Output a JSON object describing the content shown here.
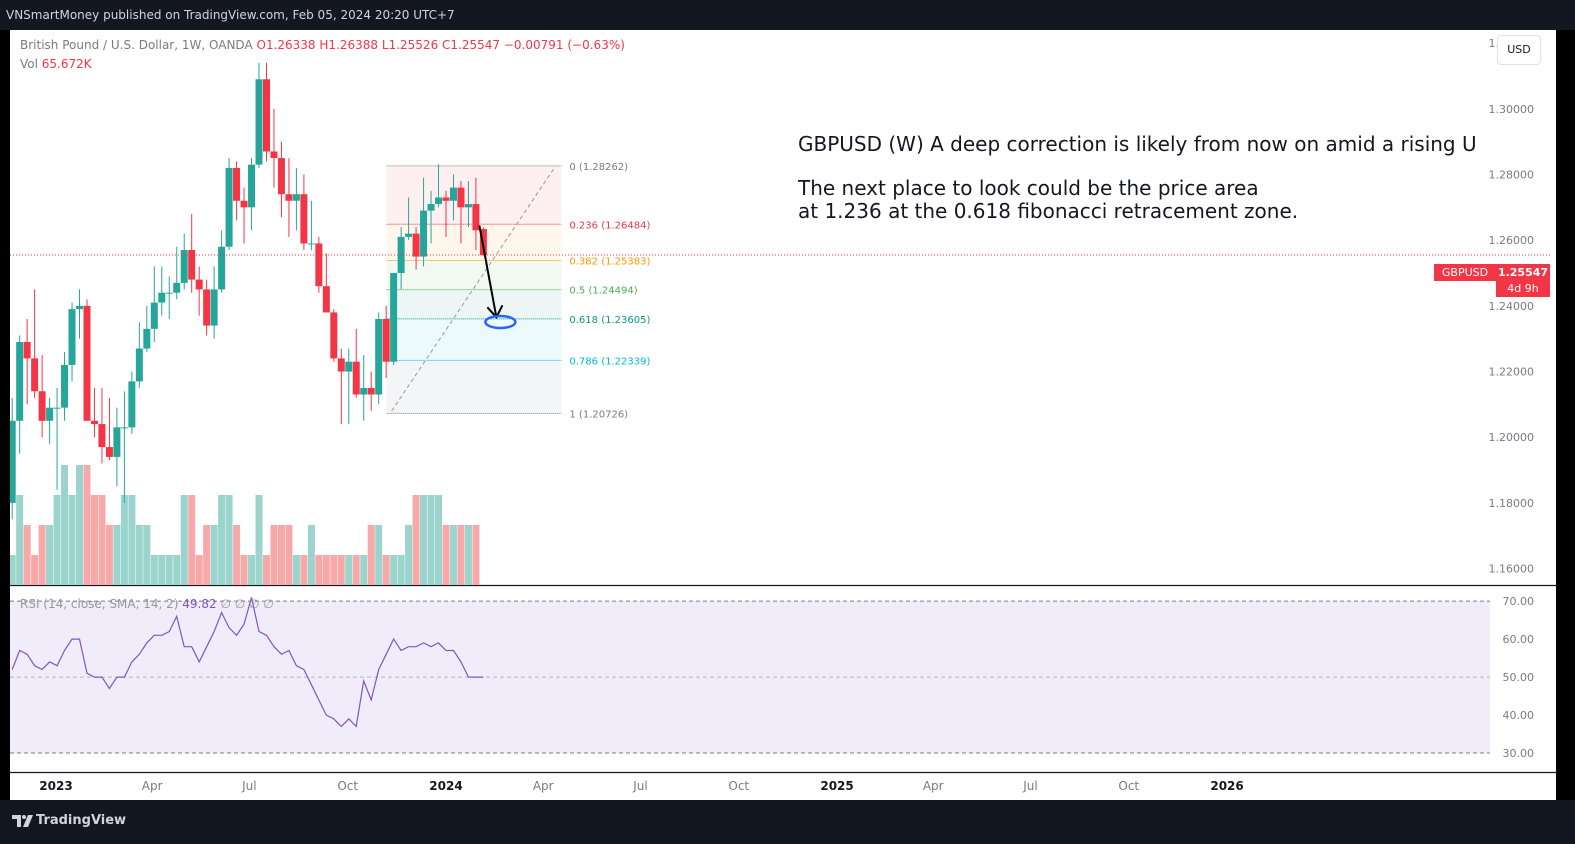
{
  "publisher": "VNSmartMoney published on TradingView.com, Feb 05, 2024 20:20 UTC+7",
  "legend": {
    "symbol": "British Pound / U.S. Dollar, 1W, OANDA",
    "open": "O1.26338",
    "high": "H1.26388",
    "low": "L1.25526",
    "close": "C1.25547",
    "change": "−0.00791 (−0.63%)",
    "vol_label": "Vol",
    "vol_value": "65.672K"
  },
  "currency_button": "USD",
  "price_tag": {
    "symbol": "GBPUSD",
    "price": "1.25547",
    "countdown": "4d 9h"
  },
  "annotation": {
    "headline": "GBPUSD (W) A deep correction is likely from now on amid a rising U",
    "line1": "The next place to look could be the price area",
    "line2": "at 1.236 at the 0.618 fibonacci retracement zone."
  },
  "rsi_legend": {
    "label": "RSI (14, close, SMA, 14, 2)",
    "value": "49.82",
    "extras": "∅ ∅ ∅ ∅"
  },
  "footer": {
    "brand": "TradingView"
  },
  "colors": {
    "up": "#26a69a",
    "down": "#f23645",
    "vol_up": "#9bd3cd",
    "vol_down": "#f7a9a9",
    "rsi_line": "#7e57c2",
    "rsi_band": "#f1ecf9",
    "fib_0": "#787b86",
    "fib_236": "#f23645",
    "fib_382": "#ff9800",
    "fib_5": "#4caf50",
    "fib_618": "#089981",
    "fib_786": "#00bcd4",
    "fib_1": "#787b86"
  },
  "chart_data": {
    "type": "candlestick",
    "symbol": "GBPUSD",
    "timeframe": "1W",
    "price_axis": {
      "ylim": [
        1.155,
        1.324
      ],
      "ticks": [
        "1.16000",
        "1.18000",
        "1.20000",
        "1.22000",
        "1.24000",
        "1.26000",
        "1.28000",
        "1.30000",
        "1.32000"
      ]
    },
    "time_axis": {
      "labels": [
        {
          "text": "2023",
          "date": "2023-01-01",
          "bold": true
        },
        {
          "text": "Apr",
          "date": "2023-04-01",
          "bold": false
        },
        {
          "text": "Jul",
          "date": "2023-07-01",
          "bold": false
        },
        {
          "text": "Oct",
          "date": "2023-10-01",
          "bold": false
        },
        {
          "text": "2024",
          "date": "2024-01-01",
          "bold": true
        },
        {
          "text": "Apr",
          "date": "2024-04-01",
          "bold": false
        },
        {
          "text": "Jul",
          "date": "2024-07-01",
          "bold": false
        },
        {
          "text": "Oct",
          "date": "2024-10-01",
          "bold": false
        },
        {
          "text": "2025",
          "date": "2025-01-01",
          "bold": true
        },
        {
          "text": "Apr",
          "date": "2025-04-01",
          "bold": false
        },
        {
          "text": "Jul",
          "date": "2025-07-01",
          "bold": false
        },
        {
          "text": "Oct",
          "date": "2025-10-01",
          "bold": false
        },
        {
          "text": "2026",
          "date": "2026-01-01",
          "bold": true
        }
      ]
    },
    "candles": [
      {
        "date": "2022-11-21",
        "o": 1.18,
        "h": 1.212,
        "l": 1.175,
        "c": 1.205
      },
      {
        "date": "2022-11-28",
        "o": 1.205,
        "h": 1.231,
        "l": 1.195,
        "c": 1.229
      },
      {
        "date": "2022-12-05",
        "o": 1.229,
        "h": 1.236,
        "l": 1.21,
        "c": 1.224
      },
      {
        "date": "2022-12-12",
        "o": 1.224,
        "h": 1.245,
        "l": 1.212,
        "c": 1.214
      },
      {
        "date": "2022-12-19",
        "o": 1.214,
        "h": 1.225,
        "l": 1.2,
        "c": 1.205
      },
      {
        "date": "2022-12-26",
        "o": 1.205,
        "h": 1.212,
        "l": 1.198,
        "c": 1.209
      },
      {
        "date": "2023-01-02",
        "o": 1.209,
        "h": 1.215,
        "l": 1.184,
        "c": 1.209
      },
      {
        "date": "2023-01-09",
        "o": 1.209,
        "h": 1.226,
        "l": 1.205,
        "c": 1.222
      },
      {
        "date": "2023-01-16",
        "o": 1.222,
        "h": 1.241,
        "l": 1.217,
        "c": 1.239
      },
      {
        "date": "2023-01-23",
        "o": 1.239,
        "h": 1.245,
        "l": 1.23,
        "c": 1.24
      },
      {
        "date": "2023-01-30",
        "o": 1.24,
        "h": 1.242,
        "l": 1.205,
        "c": 1.205
      },
      {
        "date": "2023-02-06",
        "o": 1.205,
        "h": 1.215,
        "l": 1.2,
        "c": 1.204
      },
      {
        "date": "2023-02-13",
        "o": 1.204,
        "h": 1.215,
        "l": 1.192,
        "c": 1.197
      },
      {
        "date": "2023-02-20",
        "o": 1.197,
        "h": 1.212,
        "l": 1.193,
        "c": 1.194
      },
      {
        "date": "2023-02-27",
        "o": 1.194,
        "h": 1.209,
        "l": 1.185,
        "c": 1.203
      },
      {
        "date": "2023-03-06",
        "o": 1.203,
        "h": 1.214,
        "l": 1.18,
        "c": 1.203
      },
      {
        "date": "2023-03-13",
        "o": 1.203,
        "h": 1.22,
        "l": 1.201,
        "c": 1.217
      },
      {
        "date": "2023-03-20",
        "o": 1.217,
        "h": 1.235,
        "l": 1.215,
        "c": 1.227
      },
      {
        "date": "2023-03-27",
        "o": 1.227,
        "h": 1.24,
        "l": 1.226,
        "c": 1.233
      },
      {
        "date": "2023-04-03",
        "o": 1.233,
        "h": 1.252,
        "l": 1.229,
        "c": 1.241
      },
      {
        "date": "2023-04-10",
        "o": 1.241,
        "h": 1.252,
        "l": 1.237,
        "c": 1.244
      },
      {
        "date": "2023-04-17",
        "o": 1.244,
        "h": 1.249,
        "l": 1.236,
        "c": 1.244
      },
      {
        "date": "2023-04-24",
        "o": 1.244,
        "h": 1.258,
        "l": 1.242,
        "c": 1.247
      },
      {
        "date": "2023-05-01",
        "o": 1.247,
        "h": 1.262,
        "l": 1.245,
        "c": 1.257
      },
      {
        "date": "2023-05-08",
        "o": 1.257,
        "h": 1.268,
        "l": 1.244,
        "c": 1.248
      },
      {
        "date": "2023-05-15",
        "o": 1.248,
        "h": 1.252,
        "l": 1.237,
        "c": 1.245
      },
      {
        "date": "2023-05-22",
        "o": 1.245,
        "h": 1.248,
        "l": 1.231,
        "c": 1.234
      },
      {
        "date": "2023-05-29",
        "o": 1.234,
        "h": 1.252,
        "l": 1.23,
        "c": 1.245
      },
      {
        "date": "2023-06-05",
        "o": 1.245,
        "h": 1.263,
        "l": 1.244,
        "c": 1.258
      },
      {
        "date": "2023-06-12",
        "o": 1.258,
        "h": 1.285,
        "l": 1.257,
        "c": 1.282
      },
      {
        "date": "2023-06-19",
        "o": 1.282,
        "h": 1.284,
        "l": 1.266,
        "c": 1.272
      },
      {
        "date": "2023-06-26",
        "o": 1.272,
        "h": 1.276,
        "l": 1.259,
        "c": 1.27
      },
      {
        "date": "2023-07-03",
        "o": 1.27,
        "h": 1.285,
        "l": 1.263,
        "c": 1.283
      },
      {
        "date": "2023-07-10",
        "o": 1.283,
        "h": 1.314,
        "l": 1.282,
        "c": 1.309
      },
      {
        "date": "2023-07-17",
        "o": 1.309,
        "h": 1.314,
        "l": 1.284,
        "c": 1.287
      },
      {
        "date": "2023-07-24",
        "o": 1.287,
        "h": 1.3,
        "l": 1.276,
        "c": 1.285
      },
      {
        "date": "2023-07-31",
        "o": 1.285,
        "h": 1.29,
        "l": 1.267,
        "c": 1.274
      },
      {
        "date": "2023-08-07",
        "o": 1.274,
        "h": 1.285,
        "l": 1.261,
        "c": 1.272
      },
      {
        "date": "2023-08-14",
        "o": 1.272,
        "h": 1.282,
        "l": 1.263,
        "c": 1.274
      },
      {
        "date": "2023-08-21",
        "o": 1.274,
        "h": 1.28,
        "l": 1.257,
        "c": 1.259
      },
      {
        "date": "2023-08-28",
        "o": 1.259,
        "h": 1.272,
        "l": 1.257,
        "c": 1.259
      },
      {
        "date": "2023-09-04",
        "o": 1.259,
        "h": 1.261,
        "l": 1.244,
        "c": 1.246
      },
      {
        "date": "2023-09-11",
        "o": 1.246,
        "h": 1.256,
        "l": 1.238,
        "c": 1.238
      },
      {
        "date": "2023-09-18",
        "o": 1.238,
        "h": 1.239,
        "l": 1.223,
        "c": 1.224
      },
      {
        "date": "2023-09-25",
        "o": 1.224,
        "h": 1.227,
        "l": 1.204,
        "c": 1.22
      },
      {
        "date": "2023-10-02",
        "o": 1.22,
        "h": 1.227,
        "l": 1.204,
        "c": 1.223
      },
      {
        "date": "2023-10-09",
        "o": 1.223,
        "h": 1.233,
        "l": 1.212,
        "c": 1.213
      },
      {
        "date": "2023-10-16",
        "o": 1.213,
        "h": 1.225,
        "l": 1.205,
        "c": 1.215
      },
      {
        "date": "2023-10-23",
        "o": 1.215,
        "h": 1.22,
        "l": 1.208,
        "c": 1.213
      },
      {
        "date": "2023-10-30",
        "o": 1.213,
        "h": 1.238,
        "l": 1.21,
        "c": 1.236
      },
      {
        "date": "2023-11-06",
        "o": 1.236,
        "h": 1.24,
        "l": 1.218,
        "c": 1.223
      },
      {
        "date": "2023-11-13",
        "o": 1.223,
        "h": 1.25,
        "l": 1.222,
        "c": 1.25
      },
      {
        "date": "2023-11-20",
        "o": 1.25,
        "h": 1.264,
        "l": 1.245,
        "c": 1.261
      },
      {
        "date": "2023-11-27",
        "o": 1.261,
        "h": 1.273,
        "l": 1.26,
        "c": 1.262
      },
      {
        "date": "2023-12-04",
        "o": 1.262,
        "h": 1.264,
        "l": 1.251,
        "c": 1.255
      },
      {
        "date": "2023-12-11",
        "o": 1.255,
        "h": 1.279,
        "l": 1.252,
        "c": 1.269
      },
      {
        "date": "2023-12-18",
        "o": 1.269,
        "h": 1.275,
        "l": 1.259,
        "c": 1.271
      },
      {
        "date": "2023-12-25",
        "o": 1.271,
        "h": 1.283,
        "l": 1.27,
        "c": 1.273
      },
      {
        "date": "2024-01-01",
        "o": 1.273,
        "h": 1.275,
        "l": 1.261,
        "c": 1.272
      },
      {
        "date": "2024-01-08",
        "o": 1.272,
        "h": 1.28,
        "l": 1.266,
        "c": 1.276
      },
      {
        "date": "2024-01-15",
        "o": 1.276,
        "h": 1.278,
        "l": 1.259,
        "c": 1.27
      },
      {
        "date": "2024-01-22",
        "o": 1.27,
        "h": 1.278,
        "l": 1.264,
        "c": 1.271
      },
      {
        "date": "2024-01-29",
        "o": 1.271,
        "h": 1.279,
        "l": 1.257,
        "c": 1.263
      },
      {
        "date": "2024-02-05",
        "o": 1.26338,
        "h": 1.26388,
        "l": 1.25526,
        "c": 1.25547
      }
    ],
    "volume": [
      1.16,
      1.18,
      1.17,
      1.16,
      1.17,
      1.17,
      1.18,
      1.19,
      1.18,
      1.19,
      1.19,
      1.18,
      1.18,
      1.17,
      1.17,
      1.18,
      1.18,
      1.17,
      1.17,
      1.16,
      1.16,
      1.16,
      1.16,
      1.18,
      1.18,
      1.16,
      1.17,
      1.17,
      1.18,
      1.18,
      1.17,
      1.16,
      1.16,
      1.18,
      1.16,
      1.17,
      1.17,
      1.17,
      1.16,
      1.16,
      1.17,
      1.16,
      1.16,
      1.16,
      1.16,
      1.16,
      1.16,
      1.16,
      1.17,
      1.17,
      1.16,
      1.16,
      1.16,
      1.17,
      1.18,
      1.18,
      1.18,
      1.18,
      1.17,
      1.17,
      1.17,
      1.17,
      1.17,
      1.15
    ],
    "rsi": {
      "ylim": [
        25,
        74
      ],
      "band": [
        30,
        70
      ],
      "mid": 50,
      "ticks": [
        "70.00",
        "60.00",
        "50.00",
        "40.00",
        "30.00"
      ],
      "values": [
        52,
        57,
        56,
        53,
        52,
        54,
        53,
        57,
        60,
        60,
        51,
        50,
        50,
        47,
        50,
        50,
        54,
        56,
        59,
        61,
        61,
        62,
        66,
        58,
        58,
        54,
        58,
        62,
        67,
        63,
        61,
        64,
        71,
        62,
        61,
        58,
        56,
        57,
        53,
        52,
        48,
        44,
        40,
        39,
        37,
        39,
        37,
        49,
        44,
        52,
        56,
        60,
        57,
        58,
        58,
        59,
        58,
        59,
        57,
        57,
        54,
        50,
        50,
        50
      ]
    },
    "fibonacci": {
      "start_date": "2023-10-30",
      "end_date": "2024-02-05",
      "levels": [
        {
          "ratio": "0",
          "price": 1.28262,
          "label": "0 (1.28262)"
        },
        {
          "ratio": "0.236",
          "price": 1.26484,
          "label": "0.236 (1.26484)"
        },
        {
          "ratio": "0.382",
          "price": 1.25383,
          "label": "0.382 (1.25383)"
        },
        {
          "ratio": "0.5",
          "price": 1.24494,
          "label": "0.5 (1.24494)"
        },
        {
          "ratio": "0.618",
          "price": 1.23605,
          "label": "0.618 (1.23605)"
        },
        {
          "ratio": "0.786",
          "price": 1.22339,
          "label": "0.786 (1.22339)"
        },
        {
          "ratio": "1",
          "price": 1.20726,
          "label": "1 (1.20726)"
        }
      ]
    },
    "last_price": 1.25547,
    "projection": {
      "from_price": 1.2645,
      "to_price": 1.2365,
      "target_price": 1.236
    }
  }
}
